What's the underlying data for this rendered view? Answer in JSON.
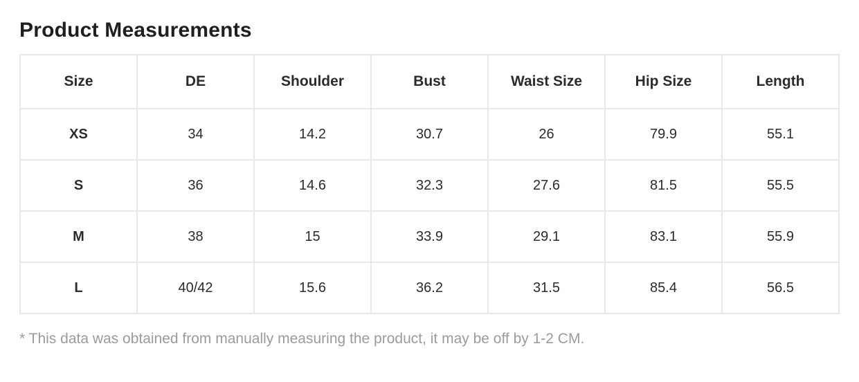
{
  "page": {
    "title": "Product Measurements",
    "footnote": "* This data was obtained from manually measuring the product, it may be off by 1-2 CM."
  },
  "table": {
    "columns": [
      "Size",
      "DE",
      "Shoulder",
      "Bust",
      "Waist Size",
      "Hip Size",
      "Length"
    ],
    "rows": [
      {
        "size": "XS",
        "values": [
          "34",
          "14.2",
          "30.7",
          "26",
          "79.9",
          "55.1"
        ]
      },
      {
        "size": "S",
        "values": [
          "36",
          "14.6",
          "32.3",
          "27.6",
          "81.5",
          "55.5"
        ]
      },
      {
        "size": "M",
        "values": [
          "38",
          "15",
          "33.9",
          "29.1",
          "83.1",
          "55.9"
        ]
      },
      {
        "size": "L",
        "values": [
          "40/42",
          "15.6",
          "36.2",
          "31.5",
          "85.4",
          "56.5"
        ]
      }
    ]
  },
  "colors": {
    "title_text": "#1f1f1f",
    "cell_text": "#2b2b2b",
    "table_border": "#e8e8e8",
    "footnote_text": "#9b9b9b",
    "background": "#ffffff"
  }
}
